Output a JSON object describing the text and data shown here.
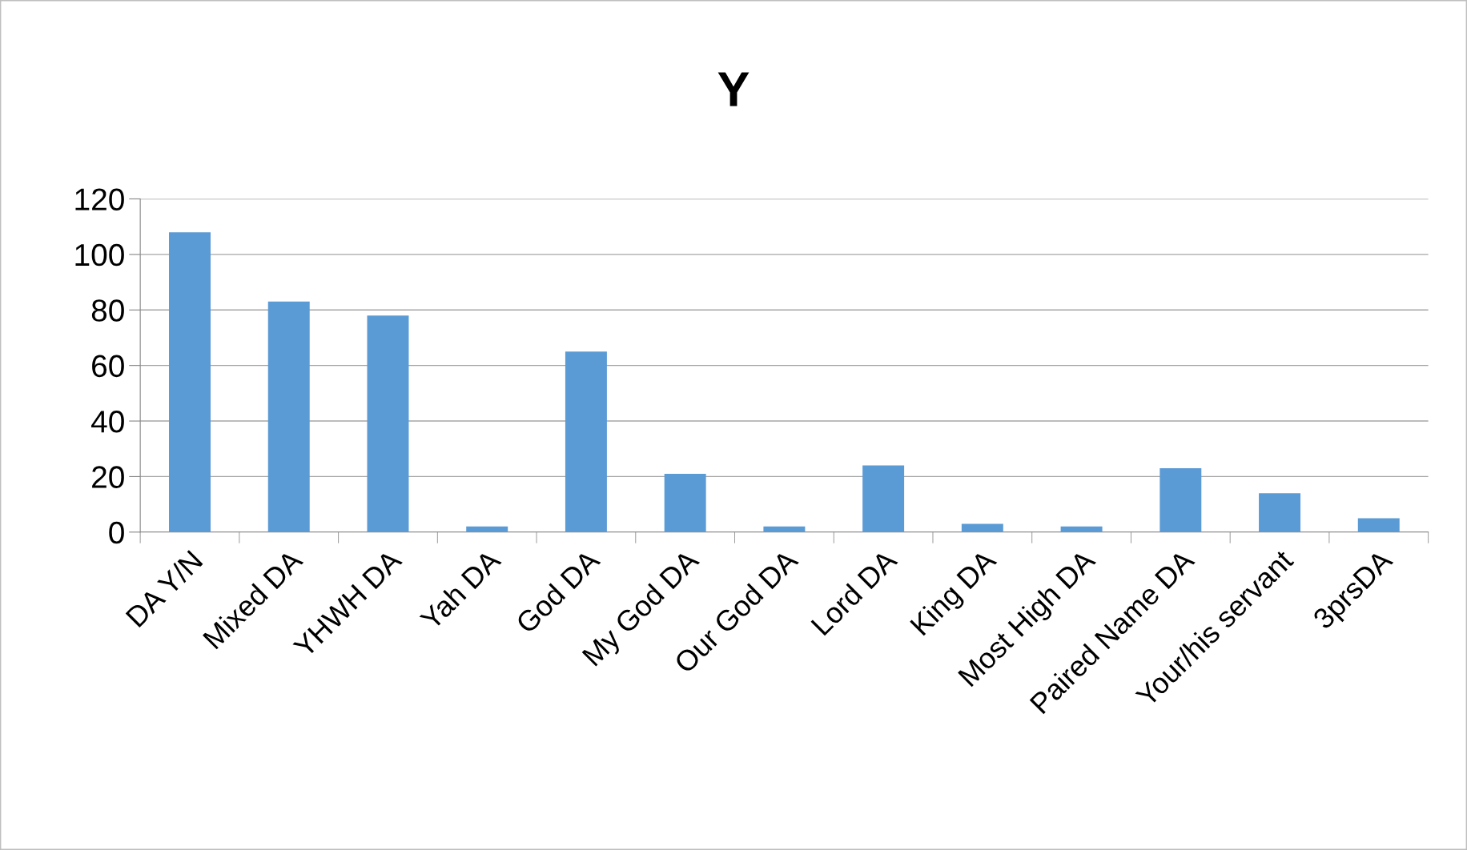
{
  "chart_data": {
    "type": "bar",
    "title": "Y",
    "categories": [
      "DA Y/N",
      "Mixed DA",
      "YHWH DA",
      "Yah DA",
      "God DA",
      "My God DA",
      "Our God DA",
      "Lord DA",
      "King DA",
      "Most High DA",
      "Paired Name DA",
      "Your/his servant",
      "3prsDA"
    ],
    "values": [
      108,
      83,
      78,
      2,
      65,
      21,
      2,
      24,
      3,
      2,
      23,
      14,
      5
    ],
    "color": "#5b9bd5",
    "ylim": [
      0,
      120
    ],
    "yticks": [
      0,
      20,
      40,
      60,
      80,
      100,
      120
    ],
    "grid": "y",
    "legend": false
  }
}
